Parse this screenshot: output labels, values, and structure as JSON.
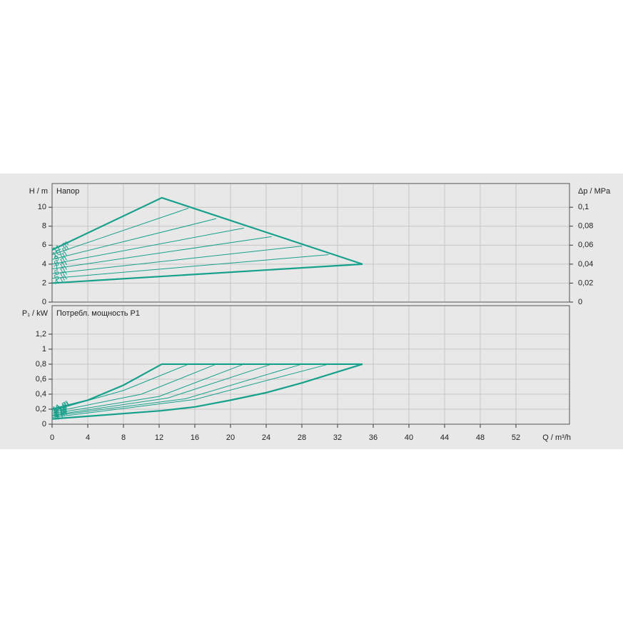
{
  "chart_data": [
    {
      "type": "line",
      "title": "Напор",
      "ylabel": "H / m",
      "y2label": "Δp / MPa",
      "color": "#17a08c",
      "grid": true,
      "xlim": [
        0,
        58
      ],
      "ylim": [
        0,
        12.5
      ],
      "yticks": [
        0,
        2,
        4,
        6,
        8,
        10
      ],
      "y2lim": [
        0,
        0.125
      ],
      "y2ticks": [
        0,
        {
          "value": 0.02,
          "label": "0,02"
        },
        {
          "value": 0.04,
          "label": "0,04"
        },
        {
          "value": 0.06,
          "label": "0,06"
        },
        {
          "value": 0.08,
          "label": "0,08"
        },
        {
          "value": 0.1,
          "label": "0,1"
        }
      ],
      "series": [
        {
          "name": "11 m",
          "x": [
            0,
            12.3,
            34.8
          ],
          "values": [
            5.5,
            11,
            4
          ]
        },
        {
          "name": "10 m",
          "x": [
            0,
            15.3
          ],
          "values": [
            5,
            9.9
          ]
        },
        {
          "name": "9 m",
          "x": [
            0,
            18.4
          ],
          "values": [
            4.5,
            8.8
          ]
        },
        {
          "name": "8 m",
          "x": [
            0,
            21.5
          ],
          "values": [
            4,
            7.8
          ]
        },
        {
          "name": "7 m",
          "x": [
            0,
            24.6
          ],
          "values": [
            3.5,
            6.9
          ]
        },
        {
          "name": "6 m",
          "x": [
            0,
            28
          ],
          "values": [
            3,
            5.9
          ]
        },
        {
          "name": "5 m",
          "x": [
            0,
            31
          ],
          "values": [
            2.5,
            5
          ]
        },
        {
          "name": "4 m",
          "x": [
            0,
            34.8
          ],
          "values": [
            2,
            4
          ]
        }
      ]
    },
    {
      "type": "line",
      "title": "Потребл. мощность P1",
      "ylabel": "P₁ / kW",
      "xlabel": "Q / m³/h",
      "color": "#17a08c",
      "grid": true,
      "xlim": [
        0,
        58
      ],
      "xticks": [
        0,
        4,
        8,
        12,
        16,
        20,
        24,
        28,
        32,
        36,
        40,
        44,
        48,
        52
      ],
      "ylim": [
        0,
        1.58
      ],
      "yticks": [
        0,
        {
          "value": 0.2,
          "label": "0,2"
        },
        {
          "value": 0.4,
          "label": "0,4"
        },
        {
          "value": 0.6,
          "label": "0,6"
        },
        {
          "value": 0.8,
          "label": "0,8"
        },
        1,
        {
          "value": 1.2,
          "label": "1,2"
        }
      ],
      "series": [
        {
          "name": "11 m",
          "x": [
            0,
            4,
            8,
            12.3,
            34.8
          ],
          "values": [
            0.2,
            0.32,
            0.52,
            0.8,
            0.8
          ]
        },
        {
          "name": "10 m",
          "x": [
            0,
            8,
            15.3
          ],
          "values": [
            0.18,
            0.45,
            0.8
          ]
        },
        {
          "name": "9 m",
          "x": [
            0,
            10,
            18.4
          ],
          "values": [
            0.16,
            0.4,
            0.8
          ]
        },
        {
          "name": "8 m",
          "x": [
            0,
            12,
            21.5
          ],
          "values": [
            0.14,
            0.37,
            0.8
          ]
        },
        {
          "name": "7 m",
          "x": [
            0,
            13,
            24.6
          ],
          "values": [
            0.12,
            0.35,
            0.8
          ]
        },
        {
          "name": "6 m",
          "x": [
            0,
            15,
            28
          ],
          "values": [
            0.11,
            0.34,
            0.8
          ]
        },
        {
          "name": "5 m",
          "x": [
            0,
            16,
            31
          ],
          "values": [
            0.09,
            0.33,
            0.8
          ]
        },
        {
          "name": "4 m",
          "x": [
            0,
            12.3,
            16,
            20,
            24,
            28,
            34.8
          ],
          "values": [
            0.07,
            0.18,
            0.23,
            0.32,
            0.42,
            0.55,
            0.8
          ]
        }
      ]
    }
  ]
}
